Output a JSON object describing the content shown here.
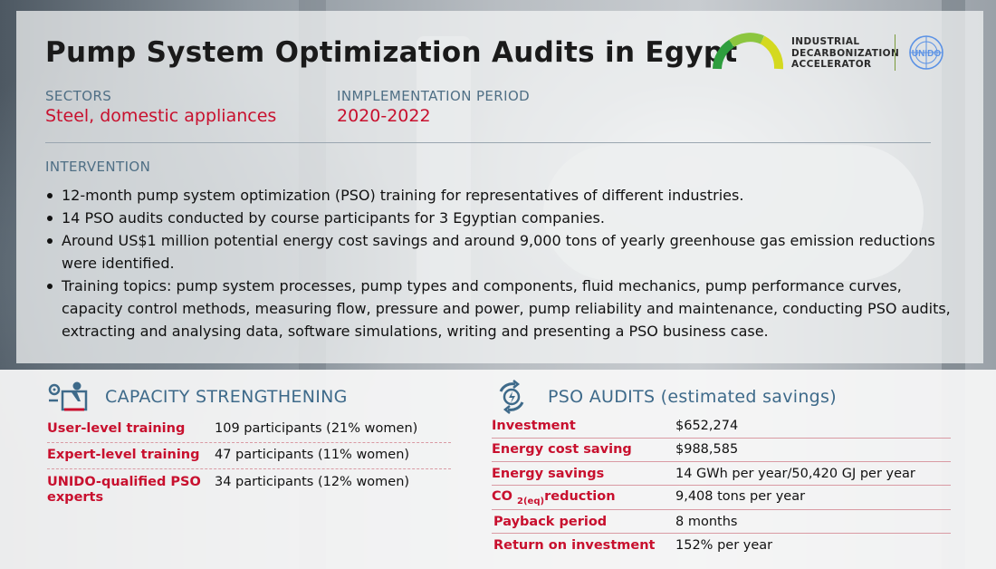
{
  "title": "Pump System Optimization Audits in Egypt",
  "logo": {
    "line1": "INDUSTRIAL",
    "line2": "DECARBONIZATION",
    "line3": "ACCELERATOR",
    "un_text": "UNIDO",
    "gauge_colors": [
      "#2e9e3e",
      "#8cc63f",
      "#d4d91f"
    ]
  },
  "sectors": {
    "label": "SECTORS",
    "value": "Steel, domestic appliances"
  },
  "period": {
    "label": "INMPLEMENTATION PERIOD",
    "value": "2020-2022"
  },
  "intervention": {
    "label": "INTERVENTION",
    "bullets": [
      "12-month pump system optimization (PSO) training for representatives of different industries.",
      "14 PSO audits conducted by course participants for 3 Egyptian companies.",
      "Around US$1 million potential energy cost savings and around 9,000 tons of yearly greenhouse gas emission reductions were identified.",
      "Training topics: pump system processes, pump types and components, fluid mechanics, pump performance curves, capacity control methods, measuring flow, pressure and power, pump reliability and maintenance, conducting PSO audits, extracting and analysing data, software simulations, writing and presenting a PSO business case."
    ]
  },
  "capacity": {
    "heading": "CAPACITY STRENGTHENING",
    "icon": "trainer-icon",
    "rows": [
      {
        "key": "User-level training",
        "value": "109 participants (21% women)"
      },
      {
        "key": "Expert-level training",
        "value": "47 participants (11% women)"
      },
      {
        "key": "UNIDO-qualified PSO experts",
        "value": "34 participants (12% women)"
      }
    ]
  },
  "pso": {
    "heading": "PSO AUDITS (estimated savings)",
    "icon": "energy-cycle-icon",
    "rows": [
      {
        "key": "Investment",
        "value": "$652,274"
      },
      {
        "key": "Energy cost saving",
        "value": "$988,585"
      },
      {
        "key": "Energy savings",
        "value": "14 GWh per year/50,420 GJ per year"
      },
      {
        "key_prefix": "CO",
        "key_sub": "2(eq)",
        "key_suffix": "reduction",
        "value": "9,408 tons per year"
      },
      {
        "key": "Payback period",
        "value": "8 months"
      },
      {
        "key": "Return on investment",
        "value": "152% per year"
      }
    ]
  },
  "colors": {
    "accent_red": "#c8102e",
    "label_blue": "#4f6f85",
    "heading_blue": "#3e6a8a"
  }
}
